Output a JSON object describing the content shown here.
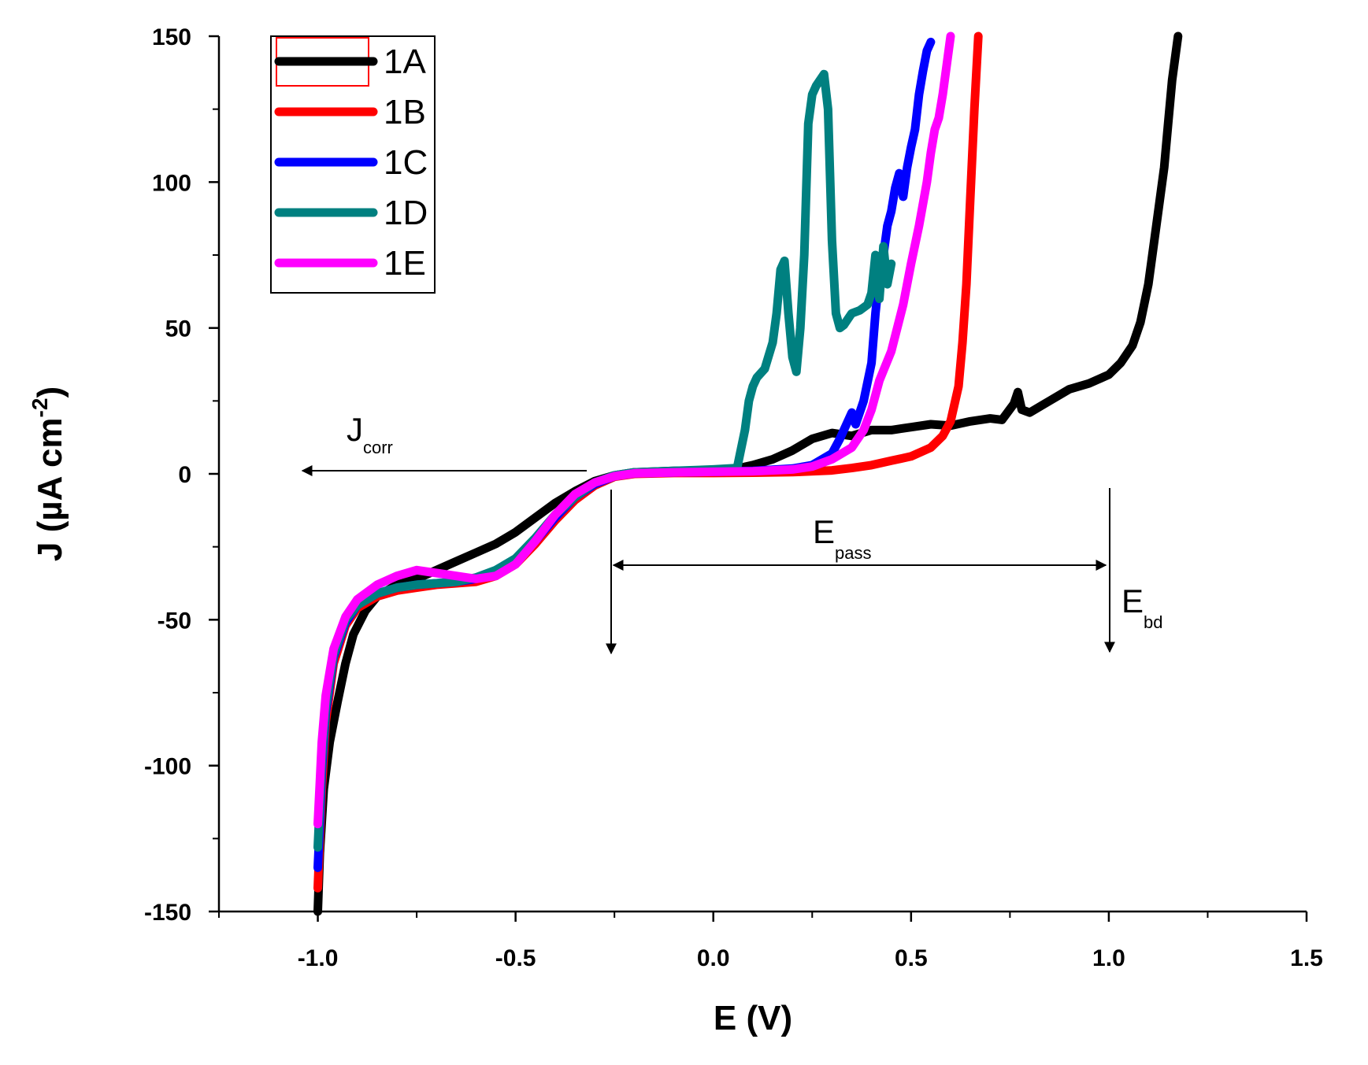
{
  "chart_data": {
    "type": "line",
    "title": "",
    "xlabel": "E (V)",
    "ylabel_parts": {
      "main": "J (µA cm",
      "sup": "-2",
      "close": ")"
    },
    "xlim": [
      -1.25,
      1.5
    ],
    "ylim": [
      -150,
      150
    ],
    "x_ticks": [
      -1.0,
      -0.5,
      0.0,
      0.5,
      1.0,
      1.5
    ],
    "x_tick_labels": [
      "-1.0",
      "-0.5",
      "0.0",
      "0.5",
      "1.0",
      "1.5"
    ],
    "x_minor_ticks": [
      -1.25,
      -0.75,
      -0.25,
      0.25,
      0.75,
      1.25
    ],
    "y_ticks": [
      -150,
      -100,
      -50,
      0,
      50,
      100,
      150
    ],
    "y_tick_labels": [
      "-150",
      "-100",
      "-50",
      "0",
      "50",
      "100",
      "150"
    ],
    "y_minor_ticks": [
      -125,
      -75,
      -25,
      25,
      75,
      125
    ],
    "grid": false,
    "legend_position": "top-left",
    "series": [
      {
        "name": "1A",
        "color": "#000000",
        "points": [
          [
            -1.0,
            -150
          ],
          [
            -0.995,
            -130
          ],
          [
            -0.985,
            -108
          ],
          [
            -0.97,
            -92
          ],
          [
            -0.95,
            -78
          ],
          [
            -0.93,
            -65
          ],
          [
            -0.91,
            -55
          ],
          [
            -0.88,
            -47
          ],
          [
            -0.85,
            -42
          ],
          [
            -0.8,
            -38
          ],
          [
            -0.75,
            -36
          ],
          [
            -0.7,
            -33
          ],
          [
            -0.65,
            -30
          ],
          [
            -0.6,
            -27
          ],
          [
            -0.55,
            -24
          ],
          [
            -0.5,
            -20
          ],
          [
            -0.45,
            -15
          ],
          [
            -0.4,
            -10
          ],
          [
            -0.35,
            -6
          ],
          [
            -0.3,
            -2.5
          ],
          [
            -0.25,
            -0.5
          ],
          [
            -0.2,
            0.5
          ],
          [
            -0.1,
            1.0
          ],
          [
            0.0,
            1.2
          ],
          [
            0.05,
            1.5
          ],
          [
            0.1,
            3
          ],
          [
            0.15,
            5
          ],
          [
            0.2,
            8
          ],
          [
            0.25,
            12
          ],
          [
            0.3,
            14
          ],
          [
            0.35,
            13
          ],
          [
            0.4,
            15
          ],
          [
            0.45,
            15
          ],
          [
            0.5,
            16
          ],
          [
            0.55,
            17
          ],
          [
            0.6,
            16.5
          ],
          [
            0.65,
            18
          ],
          [
            0.7,
            19
          ],
          [
            0.73,
            18.5
          ],
          [
            0.76,
            24
          ],
          [
            0.77,
            28
          ],
          [
            0.78,
            22
          ],
          [
            0.8,
            21
          ],
          [
            0.85,
            25
          ],
          [
            0.9,
            29
          ],
          [
            0.95,
            31
          ],
          [
            1.0,
            34
          ],
          [
            1.03,
            38
          ],
          [
            1.06,
            44
          ],
          [
            1.08,
            52
          ],
          [
            1.1,
            65
          ],
          [
            1.12,
            85
          ],
          [
            1.14,
            105
          ],
          [
            1.15,
            120
          ],
          [
            1.16,
            135
          ],
          [
            1.17,
            145
          ],
          [
            1.175,
            150
          ]
        ]
      },
      {
        "name": "1B",
        "color": "#ff0000",
        "points": [
          [
            -1.0,
            -142
          ],
          [
            -0.995,
            -125
          ],
          [
            -0.99,
            -108
          ],
          [
            -0.98,
            -85
          ],
          [
            -0.96,
            -65
          ],
          [
            -0.93,
            -52
          ],
          [
            -0.9,
            -46
          ],
          [
            -0.85,
            -42
          ],
          [
            -0.8,
            -40
          ],
          [
            -0.75,
            -39
          ],
          [
            -0.7,
            -38
          ],
          [
            -0.65,
            -37.5
          ],
          [
            -0.6,
            -37
          ],
          [
            -0.55,
            -35
          ],
          [
            -0.5,
            -31
          ],
          [
            -0.45,
            -24
          ],
          [
            -0.4,
            -16
          ],
          [
            -0.35,
            -9
          ],
          [
            -0.3,
            -4
          ],
          [
            -0.25,
            -1
          ],
          [
            -0.2,
            0
          ],
          [
            -0.1,
            0.3
          ],
          [
            0.0,
            0.3
          ],
          [
            0.1,
            0.4
          ],
          [
            0.2,
            0.6
          ],
          [
            0.3,
            1.2
          ],
          [
            0.35,
            2
          ],
          [
            0.4,
            3
          ],
          [
            0.45,
            4.5
          ],
          [
            0.5,
            6
          ],
          [
            0.55,
            9
          ],
          [
            0.58,
            13
          ],
          [
            0.6,
            18
          ],
          [
            0.62,
            30
          ],
          [
            0.63,
            45
          ],
          [
            0.64,
            65
          ],
          [
            0.65,
            95
          ],
          [
            0.66,
            125
          ],
          [
            0.67,
            150
          ]
        ]
      },
      {
        "name": "1C",
        "color": "#0000ff",
        "points": [
          [
            -1.0,
            -135
          ],
          [
            -0.995,
            -120
          ],
          [
            -0.99,
            -102
          ],
          [
            -0.98,
            -82
          ],
          [
            -0.96,
            -63
          ],
          [
            -0.93,
            -51
          ],
          [
            -0.9,
            -45
          ],
          [
            -0.85,
            -41
          ],
          [
            -0.8,
            -39
          ],
          [
            -0.75,
            -38
          ],
          [
            -0.7,
            -37.5
          ],
          [
            -0.65,
            -37
          ],
          [
            -0.6,
            -36
          ],
          [
            -0.55,
            -34
          ],
          [
            -0.5,
            -30
          ],
          [
            -0.45,
            -23
          ],
          [
            -0.4,
            -15
          ],
          [
            -0.35,
            -8
          ],
          [
            -0.3,
            -3.5
          ],
          [
            -0.25,
            -0.8
          ],
          [
            -0.2,
            0.2
          ],
          [
            -0.1,
            0.5
          ],
          [
            0.0,
            0.7
          ],
          [
            0.1,
            1.0
          ],
          [
            0.2,
            1.8
          ],
          [
            0.25,
            3
          ],
          [
            0.3,
            7
          ],
          [
            0.32,
            12
          ],
          [
            0.34,
            18
          ],
          [
            0.35,
            21
          ],
          [
            0.36,
            17
          ],
          [
            0.38,
            25
          ],
          [
            0.4,
            38
          ],
          [
            0.41,
            55
          ],
          [
            0.42,
            68
          ],
          [
            0.43,
            75
          ],
          [
            0.44,
            85
          ],
          [
            0.45,
            90
          ],
          [
            0.46,
            98
          ],
          [
            0.47,
            103
          ],
          [
            0.48,
            95
          ],
          [
            0.49,
            105
          ],
          [
            0.5,
            112
          ],
          [
            0.51,
            118
          ],
          [
            0.52,
            130
          ],
          [
            0.53,
            138
          ],
          [
            0.54,
            145
          ],
          [
            0.55,
            148
          ]
        ]
      },
      {
        "name": "1D",
        "color": "#008080",
        "points": [
          [
            -1.0,
            -128
          ],
          [
            -0.995,
            -113
          ],
          [
            -0.99,
            -98
          ],
          [
            -0.98,
            -80
          ],
          [
            -0.96,
            -62
          ],
          [
            -0.93,
            -50
          ],
          [
            -0.9,
            -45
          ],
          [
            -0.85,
            -41
          ],
          [
            -0.8,
            -39
          ],
          [
            -0.75,
            -38
          ],
          [
            -0.7,
            -37.5
          ],
          [
            -0.65,
            -37
          ],
          [
            -0.6,
            -35.5
          ],
          [
            -0.55,
            -33
          ],
          [
            -0.5,
            -29
          ],
          [
            -0.45,
            -22
          ],
          [
            -0.4,
            -14
          ],
          [
            -0.35,
            -8
          ],
          [
            -0.3,
            -3
          ],
          [
            -0.25,
            -0.5
          ],
          [
            -0.2,
            0.5
          ],
          [
            -0.1,
            1.0
          ],
          [
            0.0,
            1.5
          ],
          [
            0.06,
            2
          ],
          [
            0.08,
            15
          ],
          [
            0.09,
            25
          ],
          [
            0.1,
            30
          ],
          [
            0.11,
            33
          ],
          [
            0.13,
            36
          ],
          [
            0.15,
            45
          ],
          [
            0.16,
            55
          ],
          [
            0.17,
            70
          ],
          [
            0.18,
            73
          ],
          [
            0.19,
            55
          ],
          [
            0.2,
            40
          ],
          [
            0.21,
            35
          ],
          [
            0.22,
            50
          ],
          [
            0.23,
            75
          ],
          [
            0.24,
            120
          ],
          [
            0.25,
            130
          ],
          [
            0.26,
            133
          ],
          [
            0.27,
            135
          ],
          [
            0.28,
            137
          ],
          [
            0.29,
            125
          ],
          [
            0.3,
            80
          ],
          [
            0.31,
            55
          ],
          [
            0.32,
            50
          ],
          [
            0.33,
            51
          ],
          [
            0.35,
            55
          ],
          [
            0.37,
            56
          ],
          [
            0.39,
            58
          ],
          [
            0.4,
            62
          ],
          [
            0.41,
            75
          ],
          [
            0.42,
            60
          ],
          [
            0.43,
            78
          ],
          [
            0.44,
            65
          ],
          [
            0.45,
            72
          ]
        ]
      },
      {
        "name": "1E",
        "color": "#ff00ff",
        "points": [
          [
            -1.0,
            -120
          ],
          [
            -0.995,
            -106
          ],
          [
            -0.99,
            -92
          ],
          [
            -0.98,
            -76
          ],
          [
            -0.96,
            -60
          ],
          [
            -0.93,
            -49
          ],
          [
            -0.9,
            -43
          ],
          [
            -0.85,
            -38
          ],
          [
            -0.8,
            -35
          ],
          [
            -0.75,
            -33
          ],
          [
            -0.7,
            -34
          ],
          [
            -0.65,
            -35
          ],
          [
            -0.6,
            -36
          ],
          [
            -0.55,
            -35
          ],
          [
            -0.5,
            -31
          ],
          [
            -0.45,
            -23
          ],
          [
            -0.4,
            -14
          ],
          [
            -0.35,
            -7
          ],
          [
            -0.3,
            -3
          ],
          [
            -0.25,
            -0.8
          ],
          [
            -0.2,
            0.2
          ],
          [
            -0.1,
            0.5
          ],
          [
            0.0,
            0.7
          ],
          [
            0.1,
            0.9
          ],
          [
            0.2,
            1.5
          ],
          [
            0.25,
            2.5
          ],
          [
            0.3,
            5
          ],
          [
            0.35,
            9
          ],
          [
            0.38,
            15
          ],
          [
            0.4,
            22
          ],
          [
            0.42,
            32
          ],
          [
            0.45,
            42
          ],
          [
            0.48,
            58
          ],
          [
            0.5,
            72
          ],
          [
            0.52,
            85
          ],
          [
            0.54,
            100
          ],
          [
            0.55,
            110
          ],
          [
            0.56,
            118
          ],
          [
            0.57,
            122
          ],
          [
            0.58,
            130
          ],
          [
            0.59,
            140
          ],
          [
            0.6,
            150
          ]
        ]
      }
    ],
    "annotations": {
      "jcorr": {
        "main": "J",
        "sub": "corr"
      },
      "epass": {
        "main": "E",
        "sub": "pass"
      },
      "ebd": {
        "main": "E",
        "sub": "bd"
      }
    }
  }
}
